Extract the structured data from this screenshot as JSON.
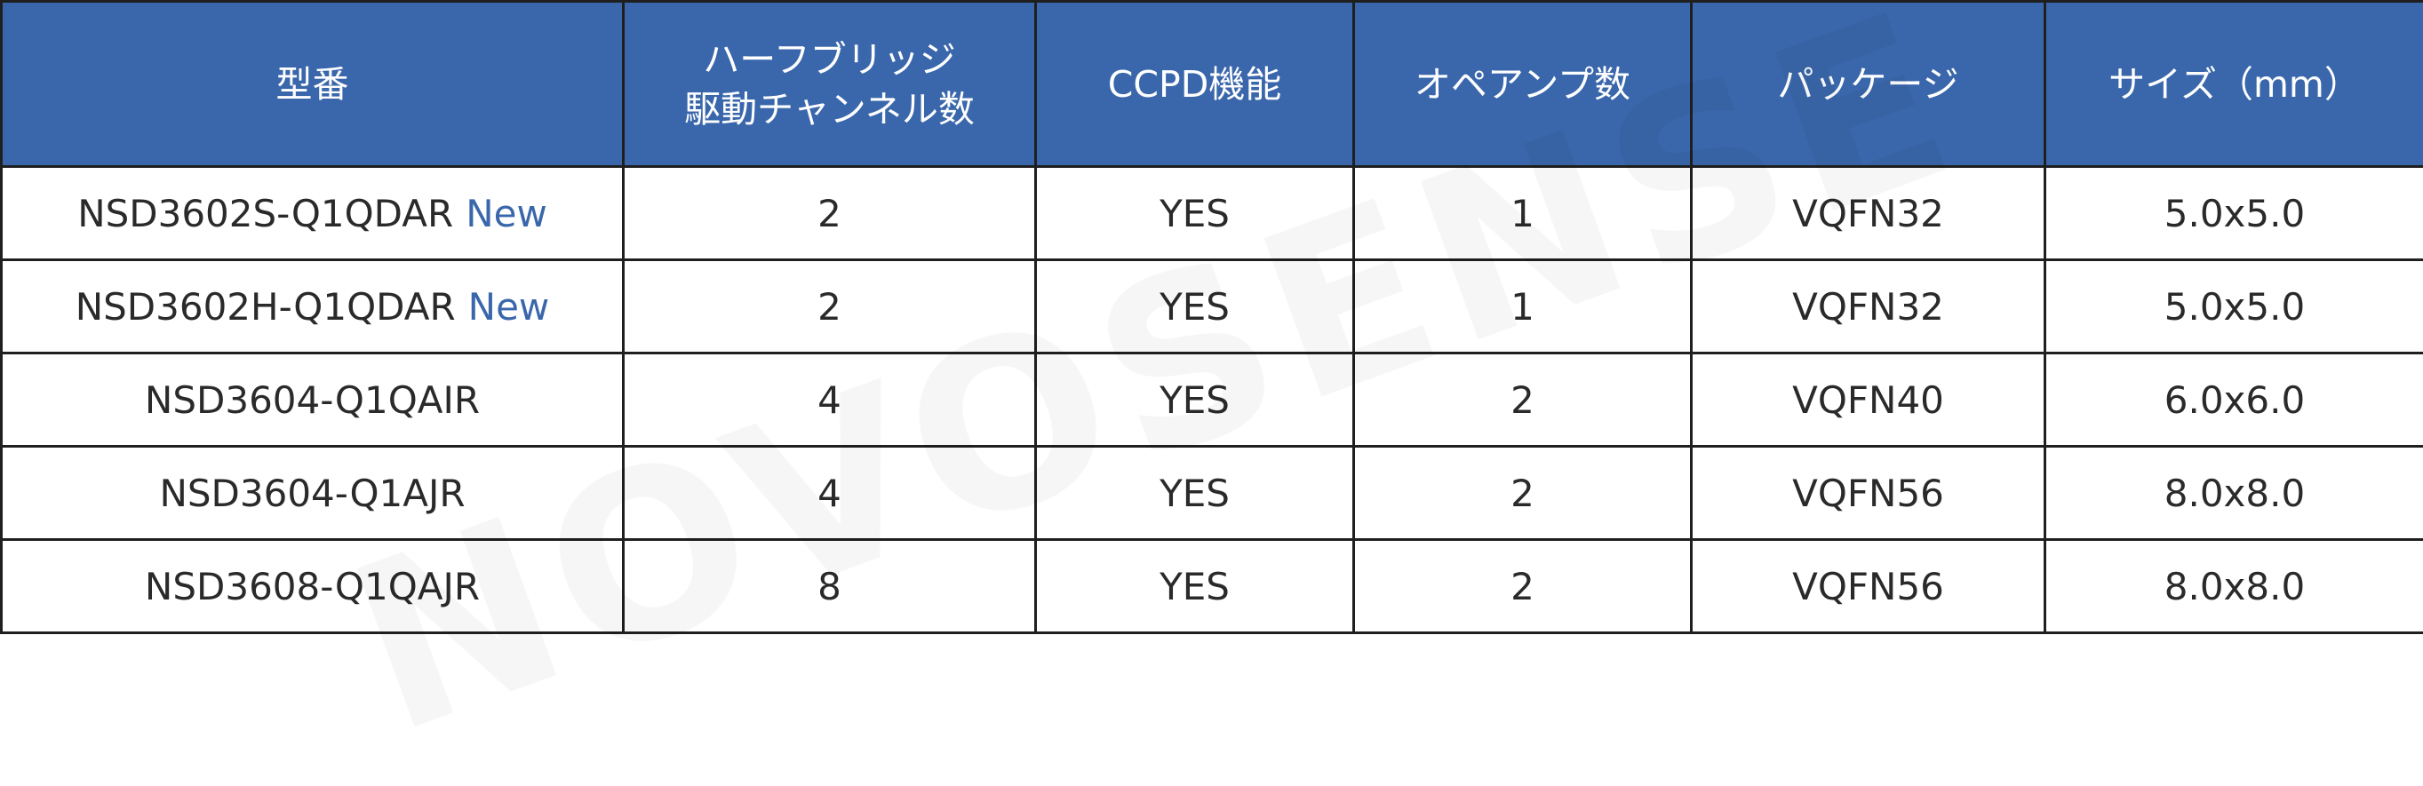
{
  "watermark": "NOVOSENSE",
  "colors": {
    "header_bg": "#3a67ab",
    "header_text": "#ffffff",
    "new_tag": "#3a67ab",
    "border": "#1f1f1f"
  },
  "table": {
    "headers": [
      "型番",
      "ハーフブリッジ\n駆動チャンネル数",
      "CCPD機能",
      "オペアンプ数",
      "パッケージ",
      "サイズ（mm）"
    ],
    "rows": [
      {
        "model": "NSD3602S-Q1QDAR",
        "tag": "New",
        "channels": "2",
        "ccpd": "YES",
        "opamps": "1",
        "package": "VQFN32",
        "size": "5.0x5.0"
      },
      {
        "model": "NSD3602H-Q1QDAR",
        "tag": "New",
        "channels": "2",
        "ccpd": "YES",
        "opamps": "1",
        "package": "VQFN32",
        "size": "5.0x5.0"
      },
      {
        "model": "NSD3604-Q1QAIR",
        "tag": "",
        "channels": "4",
        "ccpd": "YES",
        "opamps": "2",
        "package": "VQFN40",
        "size": "6.0x6.0"
      },
      {
        "model": "NSD3604-Q1AJR",
        "tag": "",
        "channels": "4",
        "ccpd": "YES",
        "opamps": "2",
        "package": "VQFN56",
        "size": "8.0x8.0"
      },
      {
        "model": "NSD3608-Q1QAJR",
        "tag": "",
        "channels": "8",
        "ccpd": "YES",
        "opamps": "2",
        "package": "VQFN56",
        "size": "8.0x8.0"
      }
    ]
  }
}
